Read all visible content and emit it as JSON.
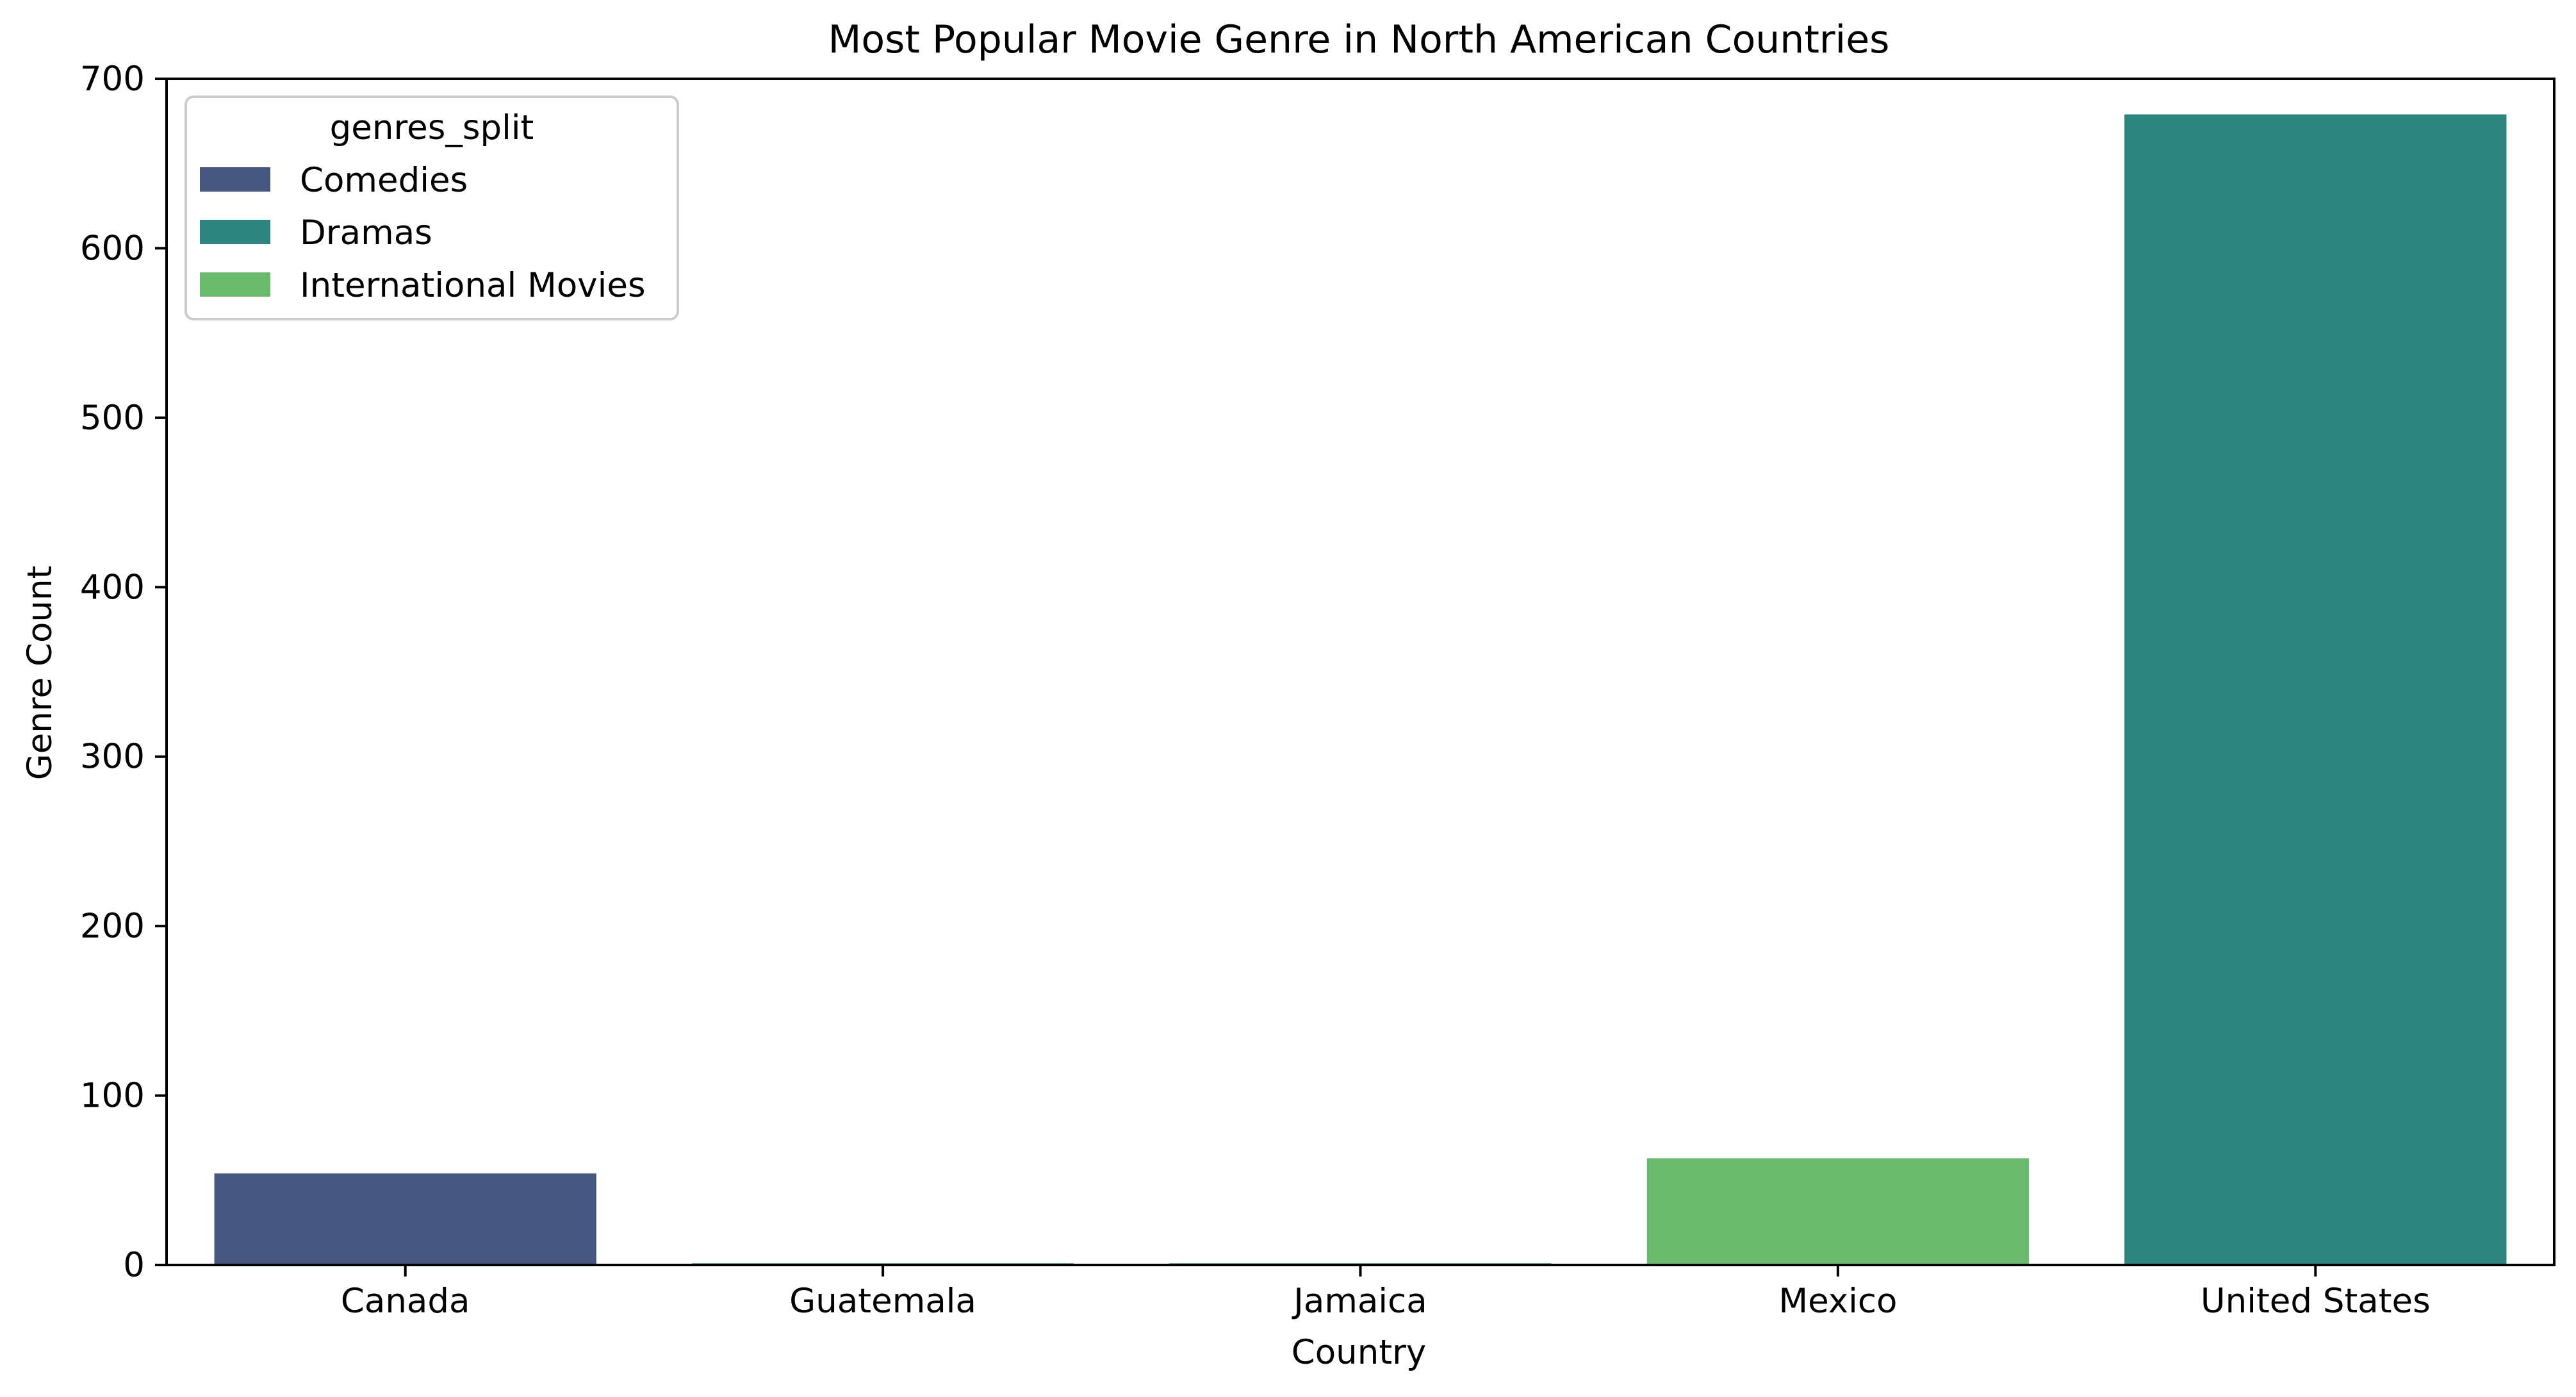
{
  "chart_data": {
    "type": "bar",
    "title": "Most Popular Movie Genre in North American Countries",
    "xlabel": "Country",
    "ylabel": "Genre Count",
    "categories": [
      "Canada",
      "Guatemala",
      "Jamaica",
      "Mexico",
      "United States"
    ],
    "bars": [
      {
        "category": "Canada",
        "genre": "Comedies",
        "value": 54
      },
      {
        "category": "Guatemala",
        "genre": "Dramas",
        "value": 1
      },
      {
        "category": "Jamaica",
        "genre": "Dramas",
        "value": 1
      },
      {
        "category": "Mexico",
        "genre": "International Movies",
        "value": 63
      },
      {
        "category": "United States",
        "genre": "Dramas",
        "value": 679
      }
    ],
    "ylim": [
      0,
      700
    ],
    "yticks": [
      0,
      100,
      200,
      300,
      400,
      500,
      600,
      700
    ],
    "grid": false,
    "legend": {
      "title": "genres_split",
      "placement": "top-left",
      "entries": [
        {
          "label": "Comedies",
          "color": "#46567f"
        },
        {
          "label": "Dramas",
          "color": "#2e847f"
        },
        {
          "label": "International Movies",
          "color": "#6abb6d"
        }
      ]
    }
  }
}
